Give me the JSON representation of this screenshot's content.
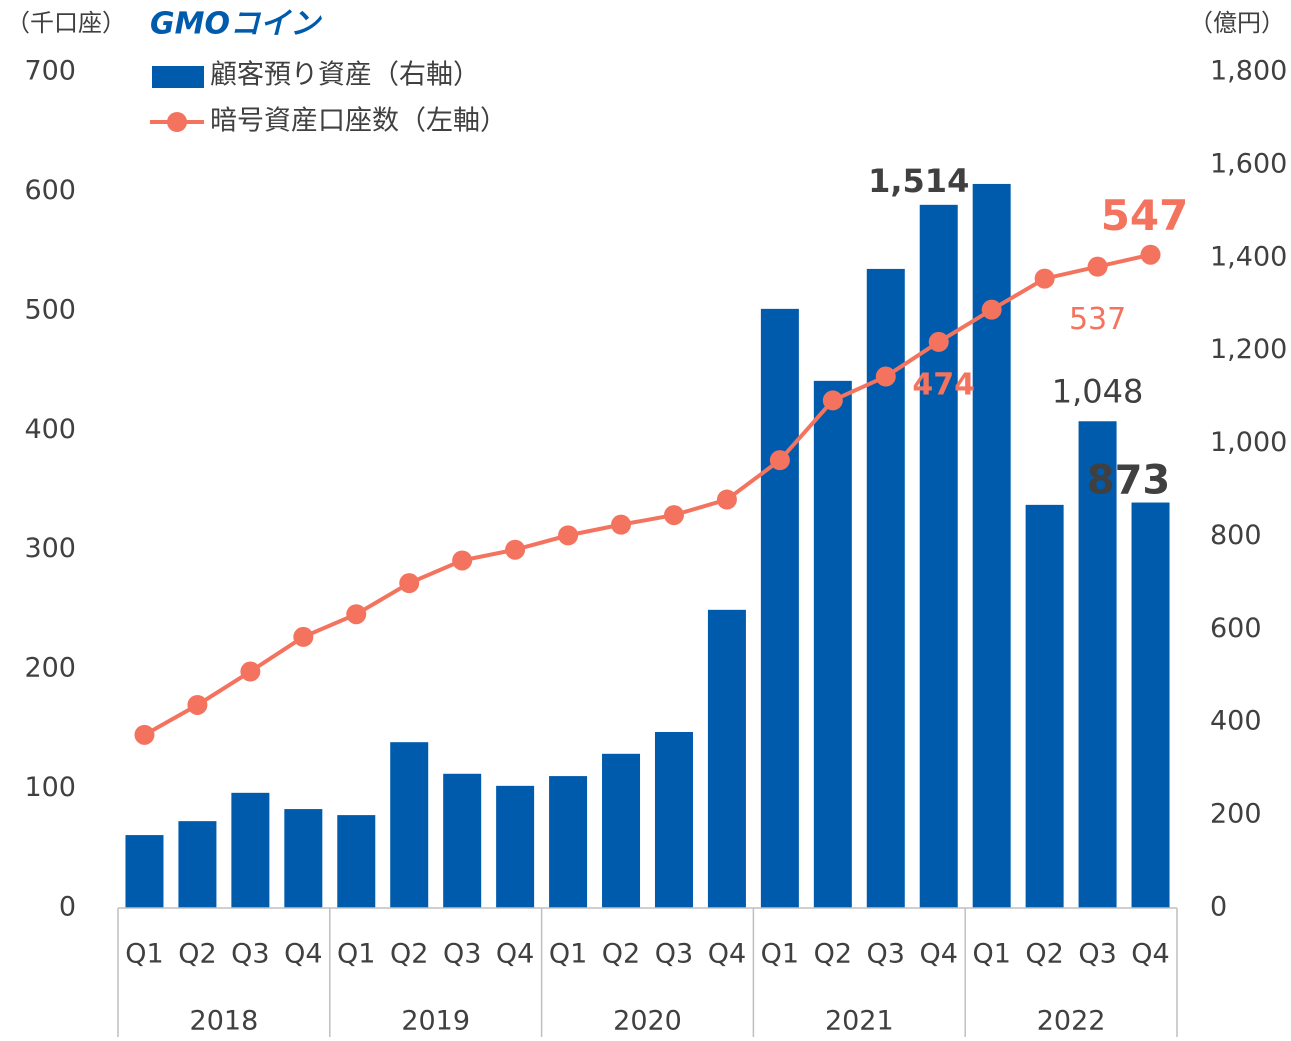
{
  "chart_data": {
    "type": "bar-line",
    "logo": "GMOコイン",
    "y_unit": "（千口座）",
    "y2_unit": "（億円）",
    "categories": [
      "Q1",
      "Q2",
      "Q3",
      "Q4",
      "Q1",
      "Q2",
      "Q3",
      "Q4",
      "Q1",
      "Q2",
      "Q3",
      "Q4",
      "Q1",
      "Q2",
      "Q3",
      "Q4",
      "Q1",
      "Q2",
      "Q3",
      "Q4"
    ],
    "years": [
      "2018",
      "2019",
      "2020",
      "2021",
      "2022"
    ],
    "ylim": [
      0,
      700
    ],
    "yticks": [
      0,
      100,
      200,
      300,
      400,
      500,
      600,
      700
    ],
    "y2lim": [
      0,
      1800
    ],
    "y2ticks": [
      0,
      200,
      400,
      600,
      800,
      {
        "value": 1000,
        "label": "1,000"
      },
      {
        "value": 1200,
        "label": "1,200"
      },
      {
        "value": 1400,
        "label": "1,400"
      },
      {
        "value": 1600,
        "label": "1,600"
      },
      {
        "value": 1800,
        "label": "1,800"
      }
    ],
    "series": [
      {
        "name": "顧客預り資産（右軸）",
        "type": "bar",
        "axis": "y2",
        "color": "#005bac",
        "values": [
          157,
          187,
          248,
          213,
          200,
          357,
          289,
          263,
          284,
          332,
          379,
          642,
          1290,
          1135,
          1376,
          1514,
          1559,
          868,
          1048,
          873
        ],
        "value_labels": [
          null,
          null,
          null,
          null,
          null,
          null,
          null,
          null,
          null,
          null,
          null,
          null,
          null,
          null,
          null,
          "1,514",
          null,
          null,
          "1,048",
          "873"
        ]
      },
      {
        "name": "暗号資産口座数（左軸）",
        "type": "line",
        "axis": "y",
        "color": "#f4735f",
        "values": [
          145,
          170,
          198,
          227,
          246,
          272,
          291,
          300,
          312,
          321,
          329,
          342,
          375,
          425,
          445,
          474,
          501,
          527,
          537,
          547
        ],
        "value_labels": [
          null,
          null,
          null,
          null,
          null,
          null,
          null,
          null,
          null,
          null,
          null,
          null,
          null,
          null,
          null,
          "474",
          null,
          null,
          "537",
          "547"
        ]
      }
    ]
  }
}
